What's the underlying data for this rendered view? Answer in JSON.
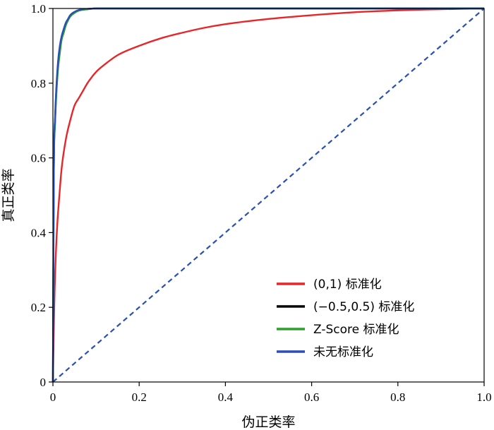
{
  "chart_data": {
    "type": "line",
    "title": "",
    "xlabel": "伪正类率",
    "ylabel": "真正类率",
    "xlim": [
      0,
      1
    ],
    "ylim": [
      0,
      1
    ],
    "xticks": [
      "0",
      "0.2",
      "0.4",
      "0.6",
      "0.8",
      "1.0"
    ],
    "yticks": [
      "0",
      "0.2",
      "0.4",
      "0.6",
      "0.8",
      "1.0"
    ],
    "grid": false,
    "legend_position": "lower-right",
    "series": [
      {
        "name": "(0,1) 标准化",
        "color": "#e8262a",
        "x": [
          0,
          0.003,
          0.006,
          0.01,
          0.015,
          0.02,
          0.03,
          0.04,
          0.05,
          0.06,
          0.07,
          0.08,
          0.1,
          0.12,
          0.15,
          0.2,
          0.25,
          0.3,
          0.35,
          0.4,
          0.5,
          0.6,
          0.7,
          0.8,
          0.9,
          1.0
        ],
        "y": [
          0,
          0.2,
          0.32,
          0.42,
          0.5,
          0.57,
          0.65,
          0.7,
          0.74,
          0.76,
          0.78,
          0.8,
          0.83,
          0.85,
          0.875,
          0.9,
          0.92,
          0.935,
          0.948,
          0.958,
          0.972,
          0.982,
          0.99,
          0.995,
          0.998,
          1.0
        ]
      },
      {
        "name": "(−0.5,0.5) 标准化",
        "color": "#000000",
        "x": [
          0,
          0.002,
          0.005,
          0.008,
          0.012,
          0.016,
          0.02,
          0.025,
          0.03,
          0.035,
          0.04,
          0.05,
          0.06,
          0.08,
          0.1,
          0.2,
          0.4,
          0.6,
          0.8,
          1.0
        ],
        "y": [
          0,
          0.55,
          0.7,
          0.78,
          0.85,
          0.89,
          0.92,
          0.94,
          0.96,
          0.97,
          0.98,
          0.99,
          0.995,
          0.998,
          1.0,
          1.0,
          1.0,
          1.0,
          1.0,
          1.0
        ]
      },
      {
        "name": "Z-Score 标准化",
        "color": "#2ca02c",
        "x": [
          0,
          0.002,
          0.005,
          0.008,
          0.012,
          0.016,
          0.02,
          0.025,
          0.03,
          0.035,
          0.04,
          0.05,
          0.06,
          0.08,
          0.1,
          0.2,
          0.4,
          0.6,
          0.8,
          1.0
        ],
        "y": [
          0,
          0.54,
          0.69,
          0.77,
          0.84,
          0.88,
          0.915,
          0.935,
          0.955,
          0.968,
          0.978,
          0.988,
          0.994,
          0.998,
          1.0,
          1.0,
          1.0,
          1.0,
          1.0,
          1.0
        ]
      },
      {
        "name": "未无标准化",
        "color": "#2a4fb5",
        "x": [
          0,
          0.002,
          0.005,
          0.008,
          0.012,
          0.016,
          0.02,
          0.025,
          0.03,
          0.035,
          0.04,
          0.05,
          0.06,
          0.08,
          0.1,
          0.2,
          0.4,
          0.6,
          0.8,
          1.0
        ],
        "y": [
          0,
          0.56,
          0.71,
          0.79,
          0.86,
          0.9,
          0.925,
          0.945,
          0.962,
          0.972,
          0.982,
          0.991,
          0.996,
          0.999,
          1.0,
          1.0,
          1.0,
          1.0,
          1.0,
          1.0
        ]
      }
    ],
    "diagonal": {
      "color": "#2a4fb5",
      "style": "dashed",
      "x": [
        0,
        1
      ],
      "y": [
        0,
        1
      ]
    }
  }
}
